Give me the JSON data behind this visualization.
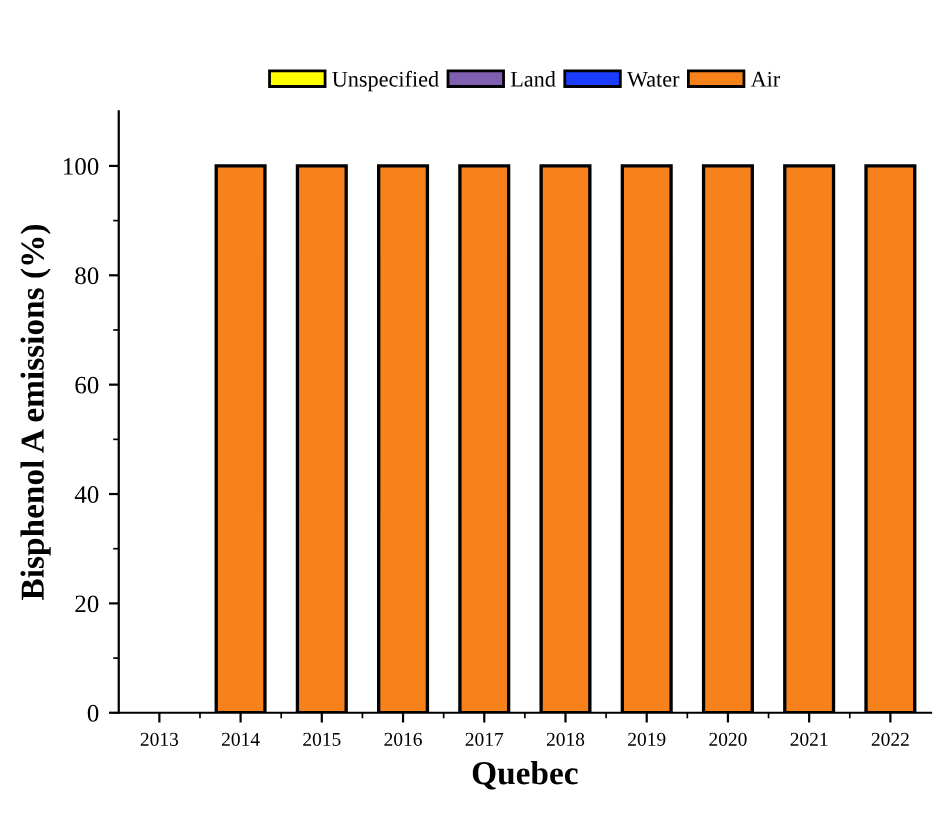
{
  "chart_data": {
    "type": "bar",
    "stacked": true,
    "xlabel": "Quebec",
    "ylabel": "Bisphenol A emissions (%)",
    "categories": [
      "2013",
      "2014",
      "2015",
      "2016",
      "2017",
      "2018",
      "2019",
      "2020",
      "2021",
      "2022"
    ],
    "series": [
      {
        "name": "Unspecified",
        "color": "#ffff00",
        "values": [
          null,
          0,
          0,
          0,
          0,
          0,
          0,
          0,
          0,
          0
        ]
      },
      {
        "name": "Land",
        "color": "#7f5fb0",
        "values": [
          null,
          0,
          0,
          0,
          0,
          0,
          0,
          0,
          0,
          0
        ]
      },
      {
        "name": "Water",
        "color": "#1a3cff",
        "values": [
          null,
          0,
          0,
          0,
          0,
          0,
          0,
          0,
          0,
          0
        ]
      },
      {
        "name": "Air",
        "color": "#f7821b",
        "values": [
          null,
          100,
          100,
          100,
          100,
          100,
          100,
          100,
          100,
          100
        ]
      }
    ],
    "ylim": [
      0,
      110
    ],
    "yticks": [
      0,
      20,
      40,
      60,
      80,
      100
    ],
    "grid": false,
    "legend": "top"
  }
}
